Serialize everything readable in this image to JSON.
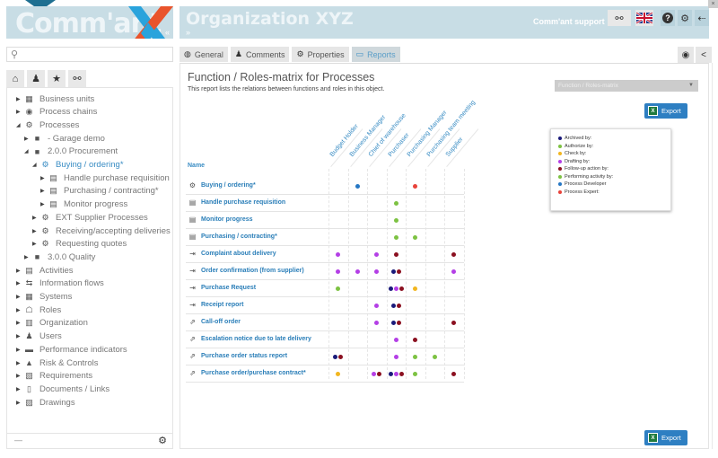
{
  "app": {
    "logo_text": "Comm'ant",
    "collapse_label": "«",
    "header_title": "Organization XYZ",
    "header_expand": "»",
    "support_label": "Comm'ant support",
    "close_label": "×",
    "header_icons": [
      "glasses-icon",
      "uk-flag-icon",
      "help-icon",
      "gear-icon",
      "logout-icon"
    ]
  },
  "sidebar": {
    "search_placeholder": "",
    "search_icon": "⚲",
    "tabs": [
      {
        "name": "home-icon",
        "glyph": "⌂"
      },
      {
        "name": "user-icon",
        "glyph": "♟"
      },
      {
        "name": "star-icon",
        "glyph": "★"
      },
      {
        "name": "link-icon",
        "glyph": "⚯"
      }
    ],
    "tree": [
      {
        "label": "Business units",
        "level": 0,
        "expanded": false,
        "icon": "▦"
      },
      {
        "label": "Process chains",
        "level": 0,
        "expanded": false,
        "icon": "◉"
      },
      {
        "label": "Processes",
        "level": 0,
        "expanded": true,
        "icon": "⚙"
      },
      {
        "label": "- Garage demo",
        "level": 1,
        "expanded": false,
        "icon": "■"
      },
      {
        "label": "2.0.0 Procurement",
        "level": 1,
        "expanded": true,
        "icon": "■"
      },
      {
        "label": "Buying / ordering*",
        "level": 2,
        "expanded": true,
        "icon": "⚙",
        "selected": true
      },
      {
        "label": "Handle purchase requisition",
        "level": 3,
        "expanded": false,
        "icon": "▤"
      },
      {
        "label": "Purchasing / contracting*",
        "level": 3,
        "expanded": false,
        "icon": "▤"
      },
      {
        "label": "Monitor progress",
        "level": 3,
        "expanded": false,
        "icon": "▤"
      },
      {
        "label": "EXT Supplier Processes",
        "level": 2,
        "expanded": false,
        "icon": "⚙"
      },
      {
        "label": "Receiving/accepting deliveries",
        "level": 2,
        "expanded": false,
        "icon": "⚙"
      },
      {
        "label": "Requesting quotes",
        "level": 2,
        "expanded": false,
        "icon": "⚙"
      },
      {
        "label": "3.0.0 Quality",
        "level": 1,
        "expanded": false,
        "icon": "■"
      },
      {
        "label": "Activities",
        "level": 0,
        "expanded": false,
        "icon": "▤"
      },
      {
        "label": "Information flows",
        "level": 0,
        "expanded": false,
        "icon": "⇆"
      },
      {
        "label": "Systems",
        "level": 0,
        "expanded": false,
        "icon": "▦"
      },
      {
        "label": "Roles",
        "level": 0,
        "expanded": false,
        "icon": "☖"
      },
      {
        "label": "Organization",
        "level": 0,
        "expanded": false,
        "icon": "▥"
      },
      {
        "label": "Users",
        "level": 0,
        "expanded": false,
        "icon": "♟"
      },
      {
        "label": "Performance indicators",
        "level": 0,
        "expanded": false,
        "icon": "▬"
      },
      {
        "label": "Risk & Controls",
        "level": 0,
        "expanded": false,
        "icon": "▲"
      },
      {
        "label": "Requirements",
        "level": 0,
        "expanded": false,
        "icon": "▧"
      },
      {
        "label": "Documents / Links",
        "level": 0,
        "expanded": false,
        "icon": "▯"
      },
      {
        "label": "Drawings",
        "level": 0,
        "expanded": false,
        "icon": "▨"
      }
    ],
    "footer_dash": "—",
    "footer_gear": "⚙"
  },
  "tabs": [
    {
      "label": "General",
      "icon": "◍",
      "active": false
    },
    {
      "label": "Comments",
      "icon": "♟",
      "active": false
    },
    {
      "label": "Properties",
      "icon": "⚙",
      "active": false
    },
    {
      "label": "Reports",
      "icon": "▭",
      "active": true
    }
  ],
  "right_buttons": [
    {
      "name": "eye-icon",
      "glyph": "◉"
    },
    {
      "name": "share-icon",
      "glyph": "<"
    }
  ],
  "report": {
    "title": "Function / Roles-matrix for Processes",
    "description": "This report lists the relations between functions and roles in this object.",
    "select_value": "Function / Roles-matrix",
    "export_label": "Export",
    "name_header": "Name",
    "columns": [
      "Budget Holder",
      "Business Manager",
      "Chief of warehouse",
      "Purchaser",
      "Purchasing Manager",
      "Purchasing team meeting",
      "Supplier"
    ],
    "legend": [
      {
        "label": "Archived by:",
        "color": "#1a1a7a"
      },
      {
        "label": "Authorize by:",
        "color": "#7dc242"
      },
      {
        "label": "Check by:",
        "color": "#f2b61f"
      },
      {
        "label": "Drafting by:",
        "color": "#b43fe6"
      },
      {
        "label": "Follow-up action by:",
        "color": "#8b1020"
      },
      {
        "label": "Performing activity by:",
        "color": "#7dc242"
      },
      {
        "label": "Process Developer",
        "color": "#2577c4"
      },
      {
        "label": "Process Expert:",
        "color": "#e8433a"
      }
    ],
    "rows": [
      {
        "name": "Buying / ordering*",
        "icon": "⚙",
        "cells": [
          [],
          [
            "#2577c4"
          ],
          [],
          [],
          [
            "#e8433a"
          ],
          [],
          []
        ]
      },
      {
        "name": "Handle purchase requisition",
        "icon": "▤",
        "cells": [
          [],
          [],
          [],
          [
            "#7dc242"
          ],
          [],
          [],
          []
        ]
      },
      {
        "name": "Monitor progress",
        "icon": "▤",
        "cells": [
          [],
          [],
          [],
          [
            "#7dc242"
          ],
          [],
          [],
          []
        ]
      },
      {
        "name": "Purchasing / contracting*",
        "icon": "▤",
        "cells": [
          [],
          [],
          [],
          [
            "#7dc242"
          ],
          [
            "#7dc242"
          ],
          [],
          []
        ]
      },
      {
        "name": "Complaint about delivery",
        "icon": "⇥",
        "cells": [
          [
            "#b43fe6"
          ],
          [],
          [
            "#b43fe6"
          ],
          [
            "#8b1020"
          ],
          [],
          [],
          [
            "#8b1020"
          ]
        ]
      },
      {
        "name": "Order confirmation (from supplier)",
        "icon": "⇥",
        "cells": [
          [
            "#b43fe6"
          ],
          [
            "#b43fe6"
          ],
          [
            "#b43fe6"
          ],
          [
            "#1a1a7a",
            "#8b1020"
          ],
          [],
          [],
          [
            "#b43fe6"
          ]
        ]
      },
      {
        "name": "Purchase Request",
        "icon": "⇥",
        "cells": [
          [
            "#7dc242"
          ],
          [],
          [],
          [
            "#1a1a7a",
            "#b43fe6",
            "#8b1020"
          ],
          [
            "#f2b61f"
          ],
          [],
          []
        ]
      },
      {
        "name": "Receipt report",
        "icon": "⇥",
        "cells": [
          [],
          [],
          [
            "#b43fe6"
          ],
          [
            "#1a1a7a",
            "#8b1020"
          ],
          [],
          [],
          []
        ]
      },
      {
        "name": "Call-off order",
        "icon": "⇗",
        "cells": [
          [],
          [],
          [
            "#b43fe6"
          ],
          [
            "#1a1a7a",
            "#8b1020"
          ],
          [],
          [],
          [
            "#8b1020"
          ]
        ]
      },
      {
        "name": "Escalation notice due to late delivery",
        "icon": "⇗",
        "cells": [
          [],
          [],
          [],
          [
            "#b43fe6"
          ],
          [
            "#8b1020"
          ],
          [],
          []
        ]
      },
      {
        "name": "Purchase order status report",
        "icon": "⇗",
        "cells": [
          [
            "#1a1a7a",
            "#8b1020"
          ],
          [],
          [],
          [
            "#b43fe6"
          ],
          [
            "#7dc242"
          ],
          [
            "#7dc242"
          ],
          []
        ]
      },
      {
        "name": "Purchase order/purchase contract*",
        "icon": "⇗",
        "cells": [
          [
            "#f2b61f"
          ],
          [],
          [
            "#b43fe6",
            "#8b1020"
          ],
          [
            "#1a1a7a",
            "#b43fe6",
            "#8b1020"
          ],
          [
            "#7dc242"
          ],
          [],
          [
            "#8b1020"
          ]
        ]
      }
    ]
  }
}
